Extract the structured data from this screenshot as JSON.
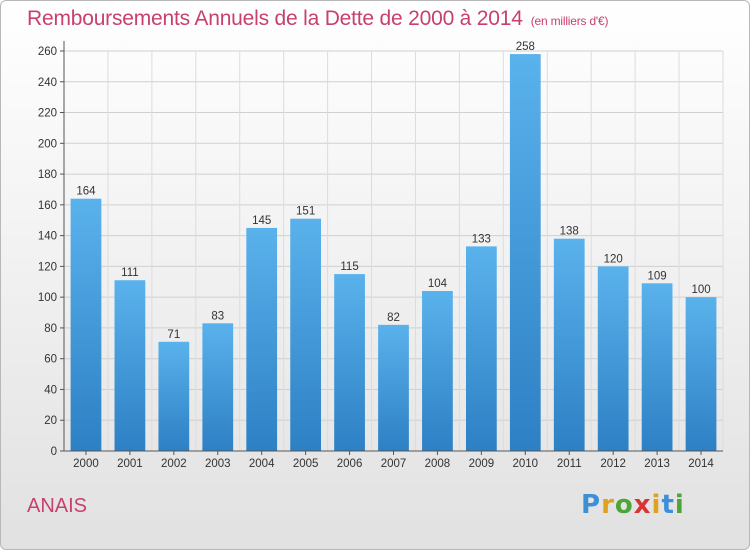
{
  "header": {
    "title": "Remboursements Annuels de la Dette de 2000 à 2014",
    "subtitle": "(en milliers d'€)"
  },
  "footer": {
    "commune": "ANAIS",
    "logo": {
      "letters": [
        "P",
        "r",
        "o",
        "x",
        "i",
        "t",
        "i"
      ],
      "colors": [
        "#3d8fd6",
        "#e0a21e",
        "#4da53a",
        "#d93434",
        "#e0a21e",
        "#3d8fd6",
        "#4da53a"
      ]
    }
  },
  "chart_data": {
    "type": "bar",
    "title": "Remboursements Annuels de la Dette de 2000 à 2014",
    "categories": [
      "2000",
      "2001",
      "2002",
      "2003",
      "2004",
      "2005",
      "2006",
      "2007",
      "2008",
      "2009",
      "2010",
      "2011",
      "2012",
      "2013",
      "2014"
    ],
    "values": [
      164,
      111,
      71,
      83,
      145,
      151,
      115,
      82,
      104,
      133,
      258,
      138,
      120,
      109,
      100
    ],
    "xlabel": "",
    "ylabel": "",
    "ylim": [
      0,
      260
    ],
    "yticks": [
      0,
      20,
      40,
      60,
      80,
      100,
      120,
      140,
      160,
      180,
      200,
      220,
      240,
      260
    ],
    "grid": true,
    "bar_color": "#3a9ee0"
  }
}
